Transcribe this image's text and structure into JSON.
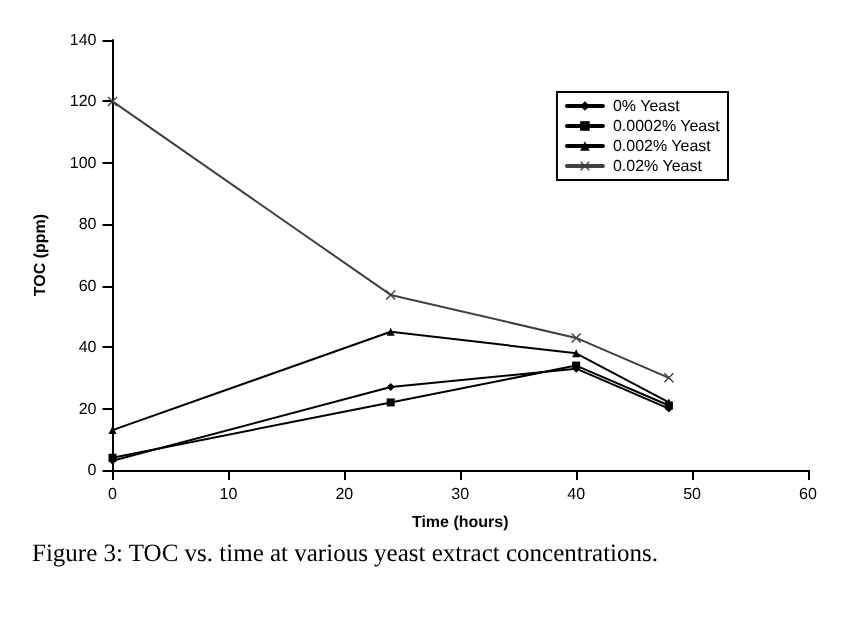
{
  "chart_data": {
    "type": "line",
    "xlabel": "Time (hours)",
    "ylabel": "TOC (ppm)",
    "x": [
      0,
      24,
      40,
      48
    ],
    "series": [
      {
        "name": "0% Yeast",
        "color": "#000000",
        "marker": "diamond",
        "values": [
          3,
          27,
          33,
          20
        ]
      },
      {
        "name": "0.0002% Yeast",
        "color": "#000000",
        "marker": "square",
        "values": [
          4,
          22,
          34,
          21
        ]
      },
      {
        "name": "0.002% Yeast",
        "color": "#000000",
        "marker": "triangle",
        "values": [
          13,
          45,
          38,
          22
        ]
      },
      {
        "name": "0.02% Yeast",
        "color": "#404040",
        "marker": "cross",
        "values": [
          120,
          57,
          43,
          30
        ]
      }
    ],
    "xlim": [
      0,
      60
    ],
    "xticks": [
      0,
      10,
      20,
      30,
      40,
      50,
      60
    ],
    "ylim": [
      0,
      140
    ],
    "yticks": [
      0,
      20,
      40,
      60,
      80,
      100,
      120,
      140
    ],
    "grid": false,
    "legend": "top right",
    "line_style": "solid",
    "annotations": [
      "Figure 3: TOC vs. time at various yeast extract concentrations."
    ]
  }
}
